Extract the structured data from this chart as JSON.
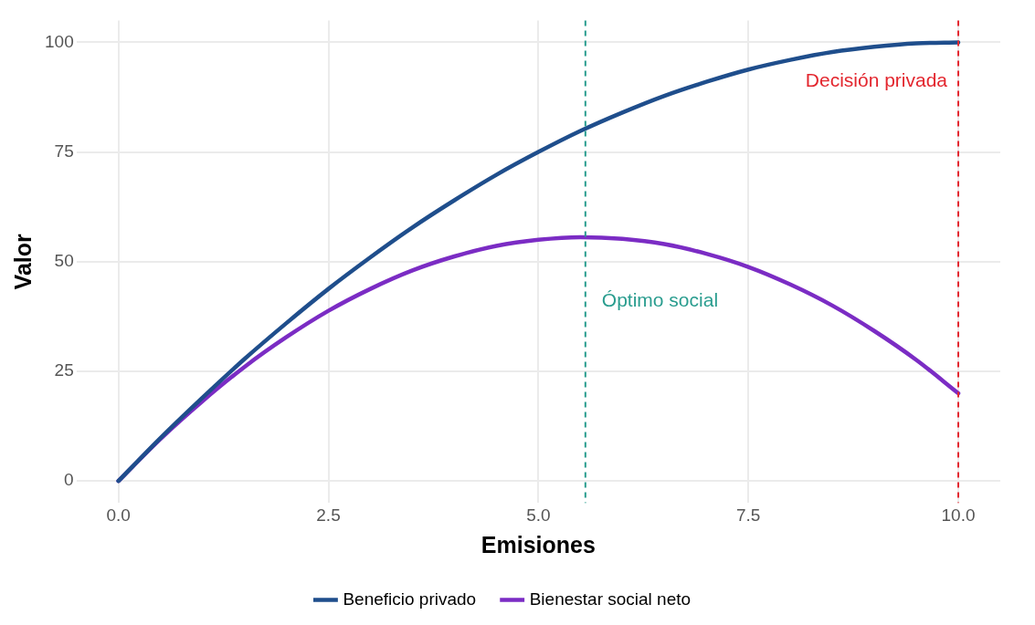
{
  "chart_data": {
    "type": "line",
    "xlabel": "Emisiones",
    "ylabel": "Valor",
    "x": [
      0,
      0.5,
      1,
      1.5,
      2,
      2.5,
      3,
      3.5,
      4,
      4.5,
      5,
      5.5,
      6,
      6.5,
      7,
      7.5,
      8,
      8.5,
      9,
      9.5,
      10
    ],
    "series": [
      {
        "name": "Beneficio privado",
        "color": "#1f4e8c",
        "values": [
          0,
          9.8,
          19,
          27.8,
          36,
          43.8,
          51,
          57.8,
          64,
          69.8,
          75,
          79.8,
          84,
          87.8,
          91,
          93.8,
          96,
          97.8,
          99,
          99.8,
          100
        ]
      },
      {
        "name": "Bienestar social neto",
        "color": "#7b2cc4",
        "values": [
          0,
          9.6,
          18.2,
          26,
          32.8,
          38.8,
          43.8,
          48,
          51.2,
          53.6,
          55,
          55.6,
          55.2,
          54,
          51.8,
          48.8,
          44.8,
          40,
          34.2,
          27.6,
          20
        ]
      }
    ],
    "xlim": [
      -0.5,
      10.5
    ],
    "ylim": [
      -5,
      105
    ],
    "xticks": [
      {
        "value": 0,
        "label": "0.0"
      },
      2.5,
      {
        "value": 5,
        "label": "5.0"
      },
      7.5,
      {
        "value": 10,
        "label": "10.0"
      }
    ],
    "yticks": [
      0,
      25,
      50,
      75,
      100
    ],
    "ref_lines": [
      {
        "axis": "x",
        "value": 5.56,
        "color": "#2a9d8f",
        "line_style": "dashed"
      },
      {
        "axis": "x",
        "value": 10,
        "color": "#e3262e",
        "line_style": "dashed"
      }
    ],
    "annotations": [
      {
        "text": "Óptimo social",
        "x": 5.56,
        "y": 41
      },
      {
        "text": "Decisión privada",
        "x": 10,
        "y": 91
      }
    ],
    "grid": true,
    "legend": "bottom",
    "marker": "none",
    "line_style": "solid"
  }
}
